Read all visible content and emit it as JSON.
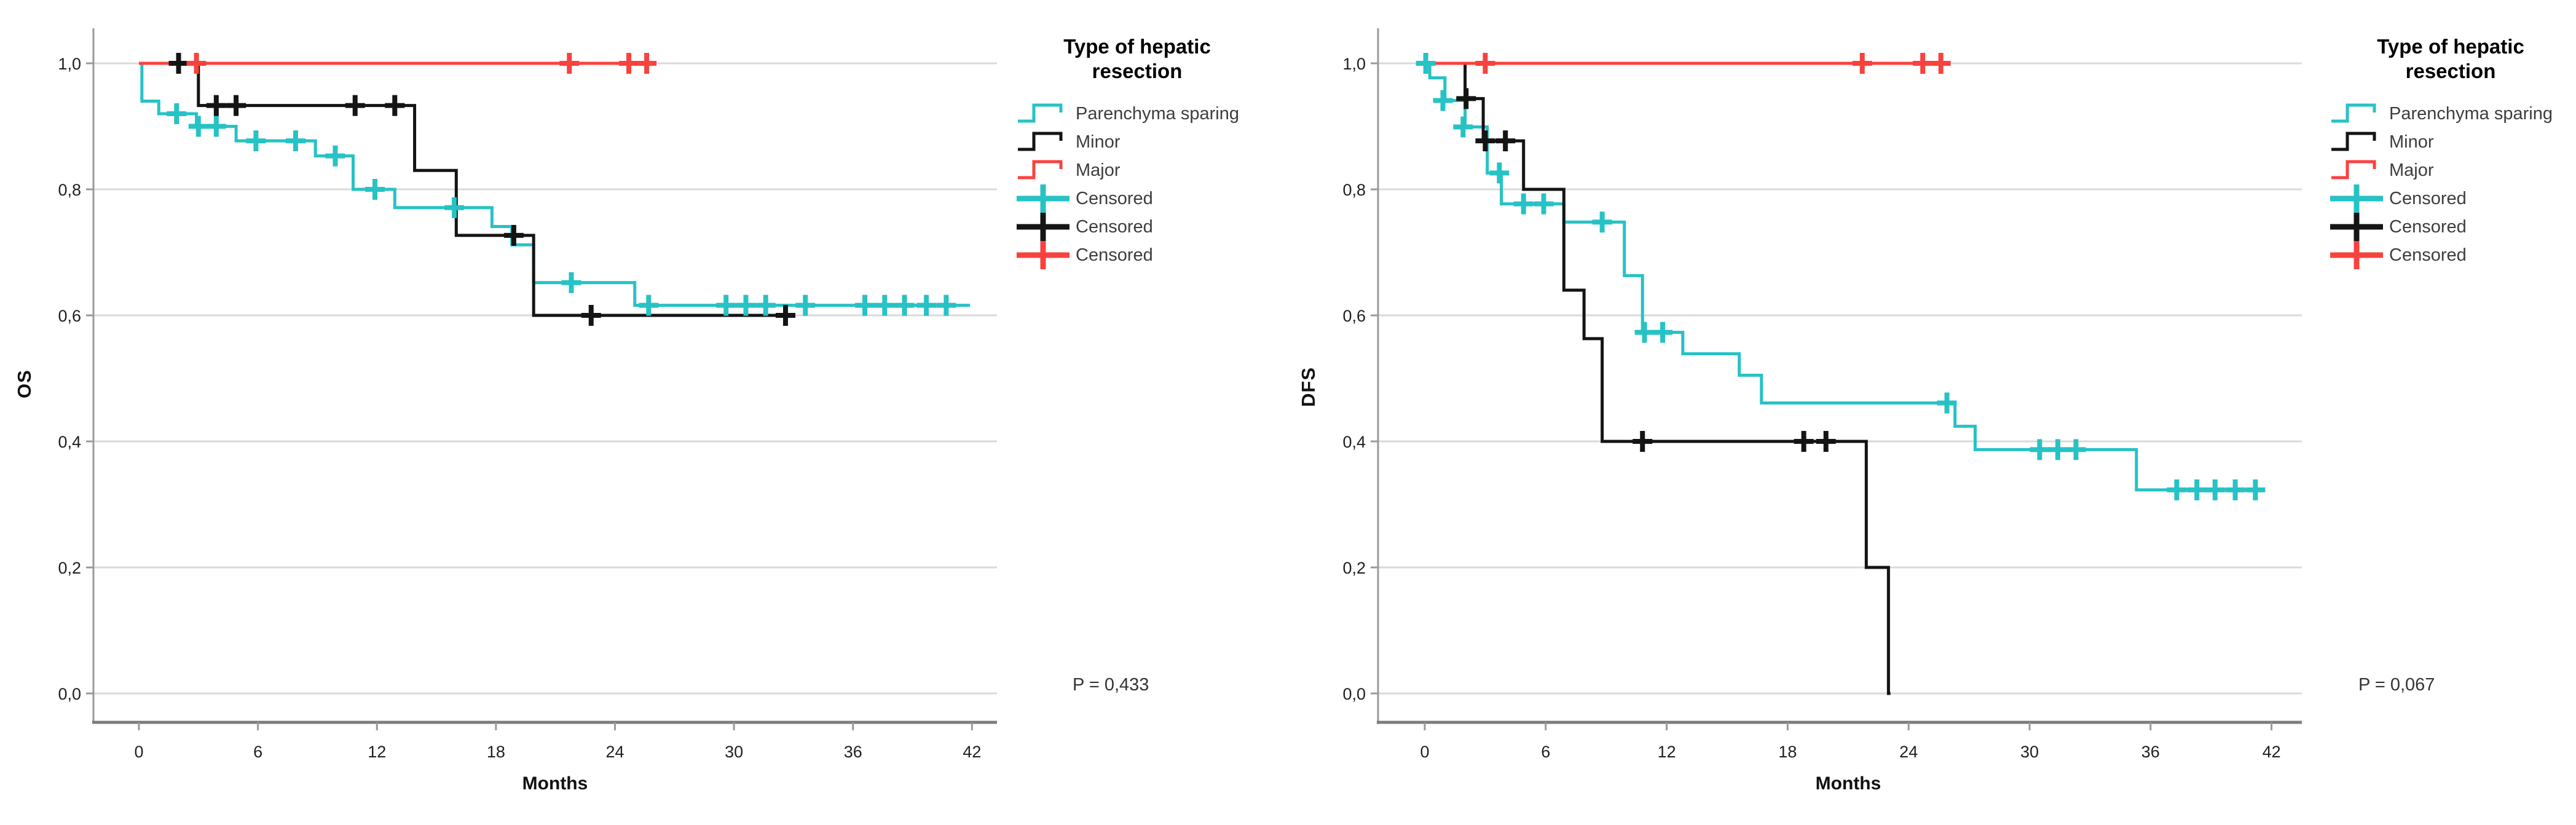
{
  "colors": {
    "parenchyma": "#27C2C5",
    "minor": "#141414",
    "major": "#F8423E",
    "grid": "#DADADA",
    "axis": "#9A9A9A",
    "axis_bottom": "#7C7C7C",
    "text": "#1F1F1F"
  },
  "legend": {
    "title": "Type of hepatic resection",
    "title_line1": "Type of hepatic",
    "title_line2": "resection",
    "items": [
      {
        "label": "Parenchyma sparing",
        "color_key": "parenchyma",
        "glyph": "step-line-icon"
      },
      {
        "label": "Minor",
        "color_key": "minor",
        "glyph": "step-line-icon"
      },
      {
        "label": "Major",
        "color_key": "major",
        "glyph": "step-line-icon"
      },
      {
        "label": "Censored",
        "color_key": "parenchyma",
        "glyph": "plus-icon"
      },
      {
        "label": "Censored",
        "color_key": "minor",
        "glyph": "plus-icon"
      },
      {
        "label": "Censored",
        "color_key": "major",
        "glyph": "plus-icon"
      }
    ]
  },
  "chart_data": [
    {
      "key": "os",
      "type": "line",
      "subtype": "kaplan-meier-step",
      "title": "",
      "xlabel": "Months",
      "ylabel": "OS",
      "p_label": "P = 0,433",
      "xlim": [
        0,
        44
      ],
      "ylim": [
        0.0,
        1.0
      ],
      "xticks": [
        0,
        6,
        12,
        18,
        24,
        30,
        36,
        42
      ],
      "yticks": [
        "1,0",
        "0,8",
        "0,6",
        "0,4",
        "0,2",
        "0,0"
      ],
      "grid": true,
      "legend_position": "right-outside",
      "series": [
        {
          "id": "parenchyma",
          "name": "Parenchyma sparing",
          "color_key": "parenchyma",
          "steps": [
            [
              0,
              1.0
            ],
            [
              0.15,
              0.94
            ],
            [
              1.0,
              0.92
            ],
            [
              2.9,
              0.9
            ],
            [
              4.9,
              0.877
            ],
            [
              8.9,
              0.853
            ],
            [
              10.8,
              0.8
            ],
            [
              12.9,
              0.771
            ],
            [
              17.8,
              0.741
            ],
            [
              18.8,
              0.712
            ],
            [
              19.9,
              0.652
            ],
            [
              25.0,
              0.616
            ]
          ],
          "end": 41.9,
          "censors": [
            [
              1.9,
              0.92
            ],
            [
              3.0,
              0.9
            ],
            [
              3.9,
              0.9
            ],
            [
              5.9,
              0.877
            ],
            [
              7.9,
              0.877
            ],
            [
              9.9,
              0.853
            ],
            [
              11.9,
              0.8
            ],
            [
              15.9,
              0.771
            ],
            [
              21.8,
              0.652
            ],
            [
              25.7,
              0.616
            ],
            [
              29.6,
              0.616
            ],
            [
              30.6,
              0.616
            ],
            [
              31.6,
              0.616
            ],
            [
              33.6,
              0.616
            ],
            [
              36.6,
              0.616
            ],
            [
              37.6,
              0.616
            ],
            [
              38.6,
              0.616
            ],
            [
              39.7,
              0.616
            ],
            [
              40.7,
              0.616
            ]
          ]
        },
        {
          "id": "minor",
          "name": "Minor",
          "color_key": "minor",
          "steps": [
            [
              0,
              1.0
            ],
            [
              3.0,
              0.933
            ],
            [
              13.9,
              0.83
            ],
            [
              16.0,
              0.727
            ],
            [
              19.9,
              0.6
            ]
          ],
          "end": 33.0,
          "censors": [
            [
              2.0,
              1.0
            ],
            [
              3.9,
              0.933
            ],
            [
              4.9,
              0.933
            ],
            [
              10.9,
              0.933
            ],
            [
              12.9,
              0.933
            ],
            [
              18.9,
              0.727
            ],
            [
              22.8,
              0.6
            ],
            [
              32.6,
              0.6
            ]
          ]
        },
        {
          "id": "major",
          "name": "Major",
          "color_key": "major",
          "steps": [
            [
              0,
              1.0
            ]
          ],
          "end": 26.0,
          "censors": [
            [
              2.9,
              1.0
            ],
            [
              21.7,
              1.0
            ],
            [
              24.7,
              1.0
            ],
            [
              25.6,
              1.0
            ]
          ]
        }
      ]
    },
    {
      "key": "dfs",
      "type": "line",
      "subtype": "kaplan-meier-step",
      "title": "",
      "xlabel": "Months",
      "ylabel": "DFS",
      "p_label": "P = 0,067",
      "xlim": [
        0,
        44
      ],
      "ylim": [
        0.0,
        1.0
      ],
      "xticks": [
        0,
        6,
        12,
        18,
        24,
        30,
        36,
        42
      ],
      "yticks": [
        "1,0",
        "0,8",
        "0,6",
        "0,4",
        "0,2",
        "0,0"
      ],
      "grid": true,
      "legend_position": "right-outside",
      "series": [
        {
          "id": "parenchyma",
          "name": "Parenchyma sparing",
          "color_key": "parenchyma",
          "steps": [
            [
              0,
              1.0
            ],
            [
              0.25,
              0.977
            ],
            [
              1.0,
              0.941
            ],
            [
              2.0,
              0.899
            ],
            [
              3.1,
              0.826
            ],
            [
              3.8,
              0.777
            ],
            [
              6.9,
              0.748
            ],
            [
              9.9,
              0.663
            ],
            [
              10.8,
              0.573
            ],
            [
              12.8,
              0.539
            ],
            [
              15.6,
              0.505
            ],
            [
              16.7,
              0.461
            ],
            [
              26.3,
              0.424
            ],
            [
              27.3,
              0.387
            ],
            [
              35.3,
              0.323
            ]
          ],
          "end": 41.6,
          "censors": [
            [
              0.05,
              1.0
            ],
            [
              0.9,
              0.941
            ],
            [
              1.9,
              0.899
            ],
            [
              3.7,
              0.826
            ],
            [
              4.9,
              0.777
            ],
            [
              5.9,
              0.777
            ],
            [
              8.8,
              0.748
            ],
            [
              10.9,
              0.573
            ],
            [
              11.8,
              0.573
            ],
            [
              25.9,
              0.461
            ],
            [
              30.5,
              0.387
            ],
            [
              31.4,
              0.387
            ],
            [
              32.3,
              0.387
            ],
            [
              37.3,
              0.323
            ],
            [
              38.3,
              0.323
            ],
            [
              39.2,
              0.323
            ],
            [
              40.2,
              0.323
            ],
            [
              41.2,
              0.323
            ]
          ]
        },
        {
          "id": "minor",
          "name": "Minor",
          "color_key": "minor",
          "steps": [
            [
              0,
              1.0
            ],
            [
              2.0,
              0.944
            ],
            [
              2.9,
              0.877
            ],
            [
              4.9,
              0.8
            ],
            [
              6.9,
              0.64
            ],
            [
              7.9,
              0.563
            ],
            [
              8.8,
              0.4
            ],
            [
              21.9,
              0.2
            ],
            [
              23.0,
              0.0
            ]
          ],
          "end": 23.1,
          "censors": [
            [
              2.05,
              0.944
            ],
            [
              3.0,
              0.877
            ],
            [
              4.0,
              0.877
            ],
            [
              10.8,
              0.4
            ],
            [
              18.8,
              0.4
            ],
            [
              19.9,
              0.4
            ]
          ]
        },
        {
          "id": "major",
          "name": "Major",
          "color_key": "major",
          "steps": [
            [
              0,
              1.0
            ]
          ],
          "end": 26.0,
          "censors": [
            [
              3.0,
              1.0
            ],
            [
              21.7,
              1.0
            ],
            [
              24.7,
              1.0
            ],
            [
              25.6,
              1.0
            ]
          ]
        }
      ]
    }
  ]
}
